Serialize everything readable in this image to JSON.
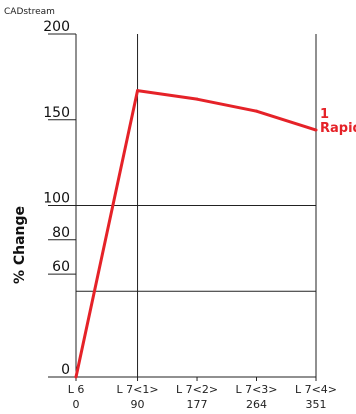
{
  "app_title": "CADstream",
  "chart_data": {
    "type": "line",
    "ylabel": "% Change",
    "y_ticks": [
      0,
      60,
      80,
      100,
      150,
      200
    ],
    "ylim": [
      0,
      200
    ],
    "x_ticks": [
      {
        "x": 0,
        "top": "L 6",
        "bottom": "0"
      },
      {
        "x": 90,
        "top": "L 7<1>",
        "bottom": "90"
      },
      {
        "x": 177,
        "top": "L 7<2>",
        "bottom": "177"
      },
      {
        "x": 264,
        "top": "L 7<3>",
        "bottom": "264"
      },
      {
        "x": 351,
        "top": "L 7<4>",
        "bottom": "351"
      }
    ],
    "xlim": [
      0,
      351
    ],
    "horizontal_lines": [
      100,
      50
    ],
    "vertical_lines": [
      90,
      351
    ],
    "series": [
      {
        "name_line1": "1",
        "name_line2": "Rapid",
        "color": "#e52228",
        "x": [
          0,
          90,
          177,
          264,
          351
        ],
        "y": [
          0,
          167,
          162,
          155,
          144
        ]
      }
    ]
  }
}
